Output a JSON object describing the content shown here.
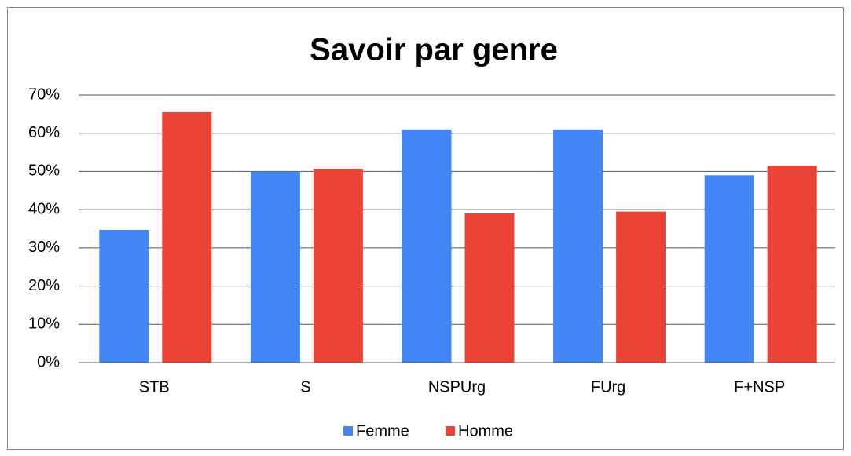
{
  "chart_data": {
    "type": "bar",
    "title": "Savoir par genre",
    "categories": [
      "STB",
      "S",
      "NSPUrg",
      "FUrg",
      "F+NSP"
    ],
    "series": [
      {
        "name": "Femme",
        "color": "#4285f4",
        "values": [
          34.7,
          50,
          61,
          61,
          49
        ]
      },
      {
        "name": "Homme",
        "color": "#ea4335",
        "values": [
          65.5,
          50.7,
          39,
          39.5,
          51.5
        ]
      }
    ],
    "ylim": [
      0,
      70
    ],
    "yticks": [
      {
        "value": 0,
        "label": "0%"
      },
      {
        "value": 10,
        "label": "10%"
      },
      {
        "value": 20,
        "label": "20%"
      },
      {
        "value": 30,
        "label": "30%"
      },
      {
        "value": 40,
        "label": "40%"
      },
      {
        "value": 50,
        "label": "50%"
      },
      {
        "value": 60,
        "label": "60%"
      },
      {
        "value": 70,
        "label": "70%"
      }
    ],
    "grid": true,
    "legend": "bottom"
  }
}
